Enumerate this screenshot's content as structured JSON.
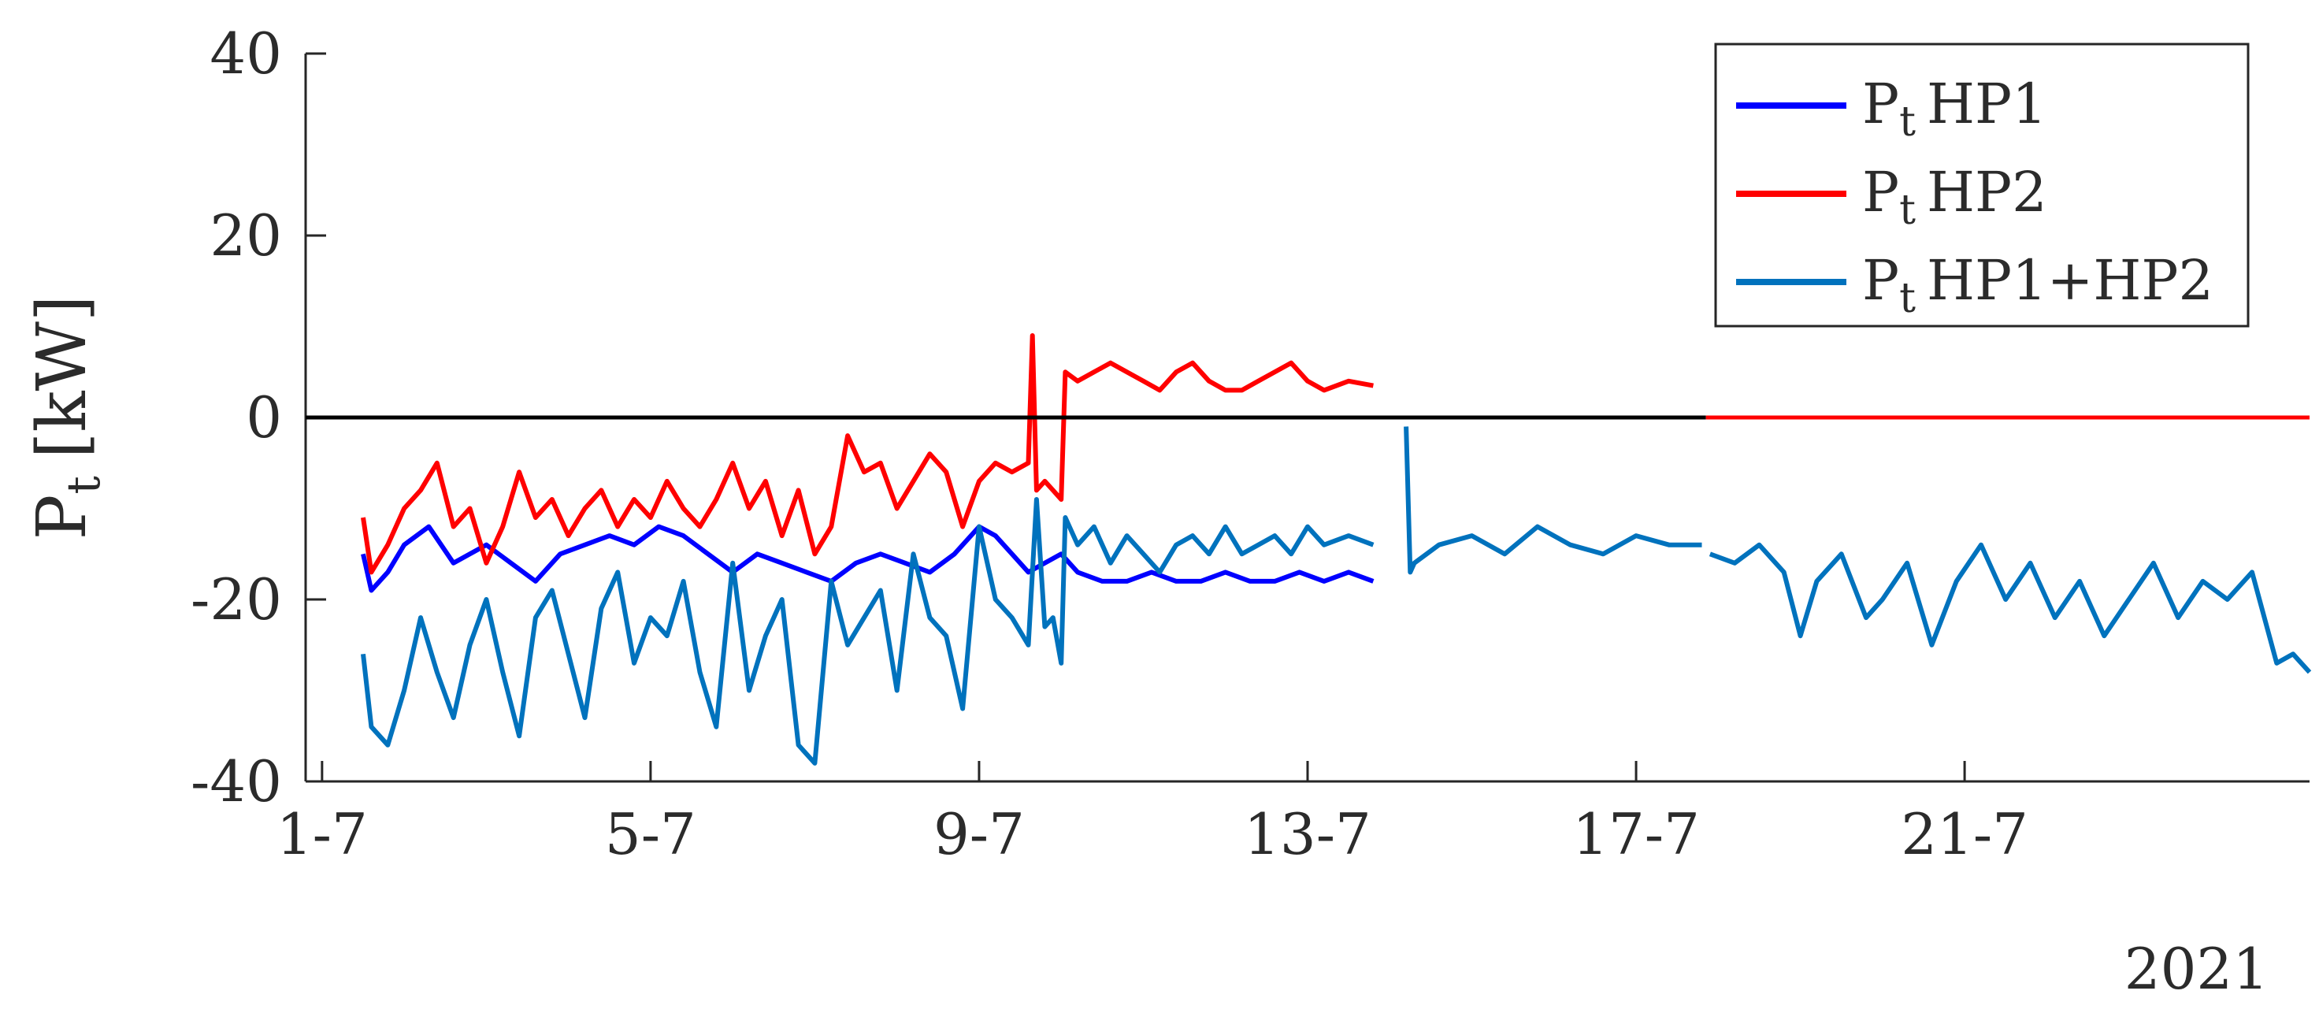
{
  "chart_data": {
    "type": "line",
    "title": "",
    "xlabel": "",
    "ylabel": {
      "main": "P",
      "sub": "t",
      "unit": "[kW]"
    },
    "year_label": "2021",
    "x_unit": "day of July 2021",
    "xlim": [
      0.8,
      25.2
    ],
    "ylim": [
      -40,
      40
    ],
    "x_ticks": [
      1,
      5,
      9,
      13,
      17,
      21
    ],
    "x_tick_labels": [
      "1-7",
      "5-7",
      "9-7",
      "13-7",
      "17-7",
      "21-7"
    ],
    "y_ticks": [
      -40,
      -20,
      0,
      20,
      40
    ],
    "y_tick_labels": [
      "-40",
      "-20",
      "0",
      "20",
      "40"
    ],
    "grid": false,
    "legend_position": "top-right",
    "series": [
      {
        "name": "HP1",
        "label_main": "P",
        "label_sub": "t",
        "label_rest": "HP1",
        "color": "#0000ff",
        "x": [
          1.5,
          1.6,
          1.8,
          2.0,
          2.3,
          2.6,
          2.8,
          3.0,
          3.3,
          3.6,
          3.9,
          4.2,
          4.5,
          4.8,
          5.1,
          5.4,
          5.7,
          6.0,
          6.3,
          6.6,
          6.9,
          7.2,
          7.5,
          7.8,
          8.1,
          8.4,
          8.7,
          9.0,
          9.2,
          9.4,
          9.6,
          9.8,
          10.0,
          10.2,
          10.5,
          10.8,
          11.1,
          11.4,
          11.7,
          12.0,
          12.3,
          12.6,
          12.9,
          13.2,
          13.5,
          13.8
        ],
        "y": [
          -15,
          -19,
          -17,
          -14,
          -12,
          -16,
          -15,
          -14,
          -16,
          -18,
          -15,
          -14,
          -13,
          -14,
          -12,
          -13,
          -15,
          -17,
          -15,
          -16,
          -17,
          -18,
          -16,
          -15,
          -16,
          -17,
          -15,
          -12,
          -13,
          -15,
          -17,
          -16,
          -15,
          -17,
          -18,
          -18,
          -17,
          -18,
          -18,
          -17,
          -18,
          -18,
          -17,
          -18,
          -17,
          -18
        ]
      },
      {
        "name": "HP2",
        "label_main": "P",
        "label_sub": "t",
        "label_rest": "HP2",
        "color": "#ff0000",
        "x": [
          1.5,
          1.6,
          1.8,
          2.0,
          2.2,
          2.4,
          2.6,
          2.8,
          3.0,
          3.2,
          3.4,
          3.6,
          3.8,
          4.0,
          4.2,
          4.4,
          4.6,
          4.8,
          5.0,
          5.2,
          5.4,
          5.6,
          5.8,
          6.0,
          6.2,
          6.4,
          6.6,
          6.8,
          7.0,
          7.2,
          7.4,
          7.6,
          7.8,
          8.0,
          8.2,
          8.4,
          8.6,
          8.8,
          9.0,
          9.2,
          9.4,
          9.6,
          9.65,
          9.7,
          9.8,
          9.9,
          10.0,
          10.05,
          10.2,
          10.4,
          10.6,
          10.8,
          11.0,
          11.2,
          11.4,
          11.6,
          11.8,
          12.0,
          12.2,
          12.4,
          12.6,
          12.8,
          13.0,
          13.2,
          13.5,
          13.8
        ],
        "y": [
          -11,
          -17,
          -14,
          -10,
          -8,
          -5,
          -12,
          -10,
          -16,
          -12,
          -6,
          -11,
          -9,
          -13,
          -10,
          -8,
          -12,
          -9,
          -11,
          -7,
          -10,
          -12,
          -9,
          -5,
          -10,
          -7,
          -13,
          -8,
          -15,
          -12,
          -2,
          -6,
          -5,
          -10,
          -7,
          -4,
          -6,
          -12,
          -7,
          -5,
          -6,
          -5,
          9,
          -8,
          -7,
          -8,
          -9,
          5,
          4,
          5,
          6,
          5,
          4,
          3,
          5,
          6,
          4,
          3,
          3,
          4,
          5,
          6,
          4,
          3,
          4,
          3.5
        ]
      },
      {
        "name": "HP1+HP2",
        "label_main": "P",
        "label_sub": "t",
        "label_rest": "HP1+HP2",
        "color": "#0072bd",
        "segments": [
          {
            "x": [
              1.5,
              1.6,
              1.8,
              2.0,
              2.2,
              2.4,
              2.6,
              2.8,
              3.0,
              3.2,
              3.4,
              3.6,
              3.8,
              4.0,
              4.2,
              4.4,
              4.6,
              4.8,
              5.0,
              5.2,
              5.4,
              5.6,
              5.8,
              6.0,
              6.2,
              6.4,
              6.6,
              6.8,
              7.0,
              7.2,
              7.4,
              7.6,
              7.8,
              8.0,
              8.2,
              8.4,
              8.6,
              8.8,
              9.0,
              9.2,
              9.4,
              9.6,
              9.7,
              9.8,
              9.9,
              10.0,
              10.05,
              10.2,
              10.4,
              10.6,
              10.8,
              11.0,
              11.2,
              11.4,
              11.6,
              11.8,
              12.0,
              12.2,
              12.4,
              12.6,
              12.8,
              13.0,
              13.2,
              13.5,
              13.8
            ],
            "y": [
              -26,
              -34,
              -36,
              -30,
              -22,
              -28,
              -33,
              -25,
              -20,
              -28,
              -35,
              -22,
              -19,
              -26,
              -33,
              -21,
              -17,
              -27,
              -22,
              -24,
              -18,
              -28,
              -34,
              -16,
              -30,
              -24,
              -20,
              -36,
              -38,
              -18,
              -25,
              -22,
              -19,
              -30,
              -15,
              -22,
              -24,
              -32,
              -12,
              -20,
              -22,
              -25,
              -9,
              -23,
              -22,
              -27,
              -11,
              -14,
              -12,
              -16,
              -13,
              -15,
              -17,
              -14,
              -13,
              -15,
              -12,
              -15,
              -14,
              -13,
              -15,
              -12,
              -14,
              -13,
              -14
            ]
          },
          {
            "x": [
              14.2,
              14.25,
              14.3,
              14.6,
              15.0,
              15.4,
              15.8,
              16.2,
              16.6,
              17.0,
              17.4,
              17.8
            ],
            "y": [
              -1,
              -17,
              -16,
              -14,
              -13,
              -15,
              -12,
              -14,
              -15,
              -13,
              -14,
              -14
            ]
          },
          {
            "x": [
              17.9,
              18.2,
              18.5,
              18.8,
              19.0,
              19.2,
              19.5,
              19.8,
              20.0,
              20.3,
              20.6,
              20.9,
              21.2,
              21.5,
              21.8,
              22.1,
              22.4,
              22.7,
              23.0,
              23.3,
              23.6,
              23.9,
              24.2,
              24.5,
              24.8,
              25.0,
              25.2
            ],
            "y": [
              -15,
              -16,
              -14,
              -17,
              -24,
              -18,
              -15,
              -22,
              -20,
              -16,
              -25,
              -18,
              -14,
              -20,
              -16,
              -22,
              -18,
              -24,
              -20,
              -16,
              -22,
              -18,
              -20,
              -17,
              -27,
              -26,
              -28
            ]
          }
        ]
      },
      {
        "name": "",
        "label_main": "",
        "color": "#000000",
        "x": [
          0.8,
          17.85
        ],
        "y": [
          0,
          0
        ]
      },
      {
        "name": "",
        "label_main": "",
        "color": "#ff0000",
        "x": [
          17.85,
          25.2
        ],
        "y": [
          0,
          0
        ]
      }
    ]
  }
}
